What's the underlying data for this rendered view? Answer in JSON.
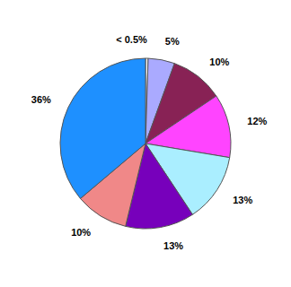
{
  "chart_data": {
    "type": "pie",
    "values": [
      0.5,
      5.0,
      10.0,
      12.0,
      13.0,
      13.0,
      10.0,
      36.0
    ],
    "value_labels": [
      "< 0.5%",
      "5%",
      "10%",
      "12%",
      "13%",
      "13%",
      "10%",
      "36%"
    ],
    "colors": [
      "#ffffff",
      "#aaaaff",
      "#882255",
      "#ff44ff",
      "#aaeeff",
      "#7700bb",
      "#f08888",
      "#1e90ff"
    ],
    "data_labels": true
  }
}
